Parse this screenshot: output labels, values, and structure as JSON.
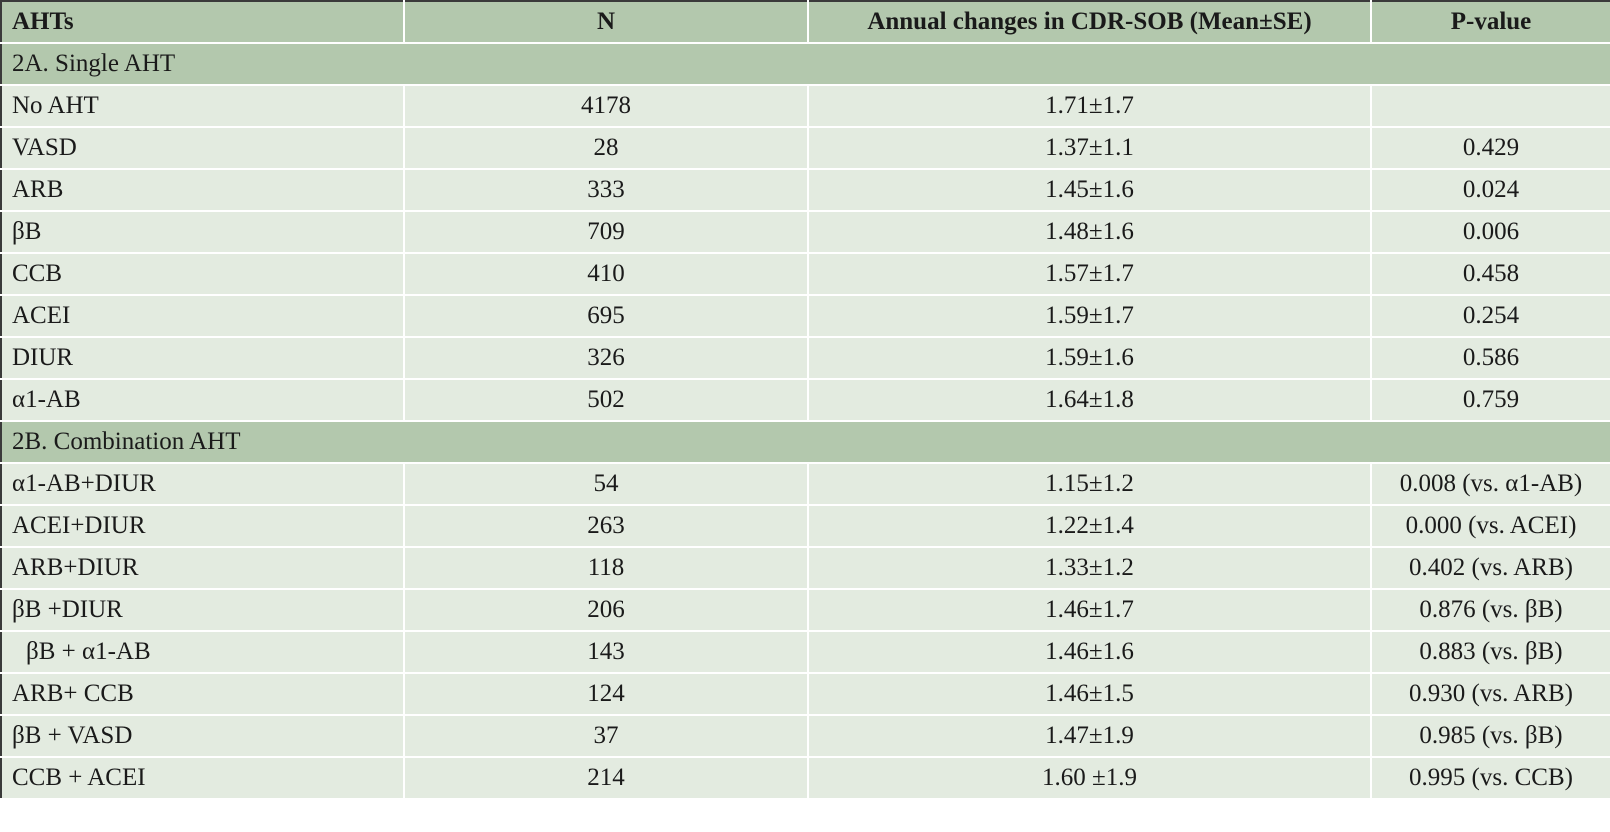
{
  "header": {
    "col1": "AHTs",
    "col2": "N",
    "col3": "Annual changes in CDR-SOB (Mean±SE)",
    "col4": "P-value"
  },
  "section_a": {
    "title": "2A. Single AHT",
    "rows": [
      {
        "aht": "No AHT",
        "n": "4178",
        "change": "1.71±1.7",
        "p": ""
      },
      {
        "aht": "VASD",
        "n": "28",
        "change": "1.37±1.1",
        "p": "0.429"
      },
      {
        "aht": "ARB",
        "n": "333",
        "change": "1.45±1.6",
        "p": "0.024"
      },
      {
        "aht": "βB",
        "n": "709",
        "change": "1.48±1.6",
        "p": "0.006"
      },
      {
        "aht": "CCB",
        "n": "410",
        "change": "1.57±1.7",
        "p": "0.458"
      },
      {
        "aht": "ACEI",
        "n": "695",
        "change": "1.59±1.7",
        "p": "0.254"
      },
      {
        "aht": "DIUR",
        "n": "326",
        "change": "1.59±1.6",
        "p": "0.586"
      },
      {
        "aht": "α1-AB",
        "n": "502",
        "change": "1.64±1.8",
        "p": "0.759"
      }
    ]
  },
  "section_b": {
    "title": "2B. Combination AHT",
    "rows": [
      {
        "aht": "α1-AB+DIUR",
        "n": "54",
        "change": "1.15±1.2",
        "p": "0.008 (vs. α1-AB)"
      },
      {
        "aht": "ACEI+DIUR",
        "n": "263",
        "change": "1.22±1.4",
        "p": "0.000 (vs. ACEI)"
      },
      {
        "aht": "ARB+DIUR",
        "n": "118",
        "change": "1.33±1.2",
        "p": "0.402 (vs. ARB)"
      },
      {
        "aht": "βB +DIUR",
        "n": "206",
        "change": "1.46±1.7",
        "p": "0.876 (vs. βB)"
      },
      {
        "aht": "βB + α1-AB",
        "n": "143",
        "change": "1.46±1.6",
        "p": "0.883 (vs. βB)"
      },
      {
        "aht": "ARB+ CCB",
        "n": "124",
        "change": "1.46±1.5",
        "p": "0.930 (vs. ARB)"
      },
      {
        "aht": "βB + VASD",
        "n": "37",
        "change": "1.47±1.9",
        "p": "0.985 (vs. βB)"
      },
      {
        "aht": "CCB + ACEI",
        "n": "214",
        "change": "1.60 ±1.9",
        "p": "0.995 (vs. CCB)"
      }
    ]
  },
  "colors": {
    "header_bg": "#b3c8ad",
    "row_bg": "#e3ebe0",
    "border": "#3a3a3a"
  }
}
